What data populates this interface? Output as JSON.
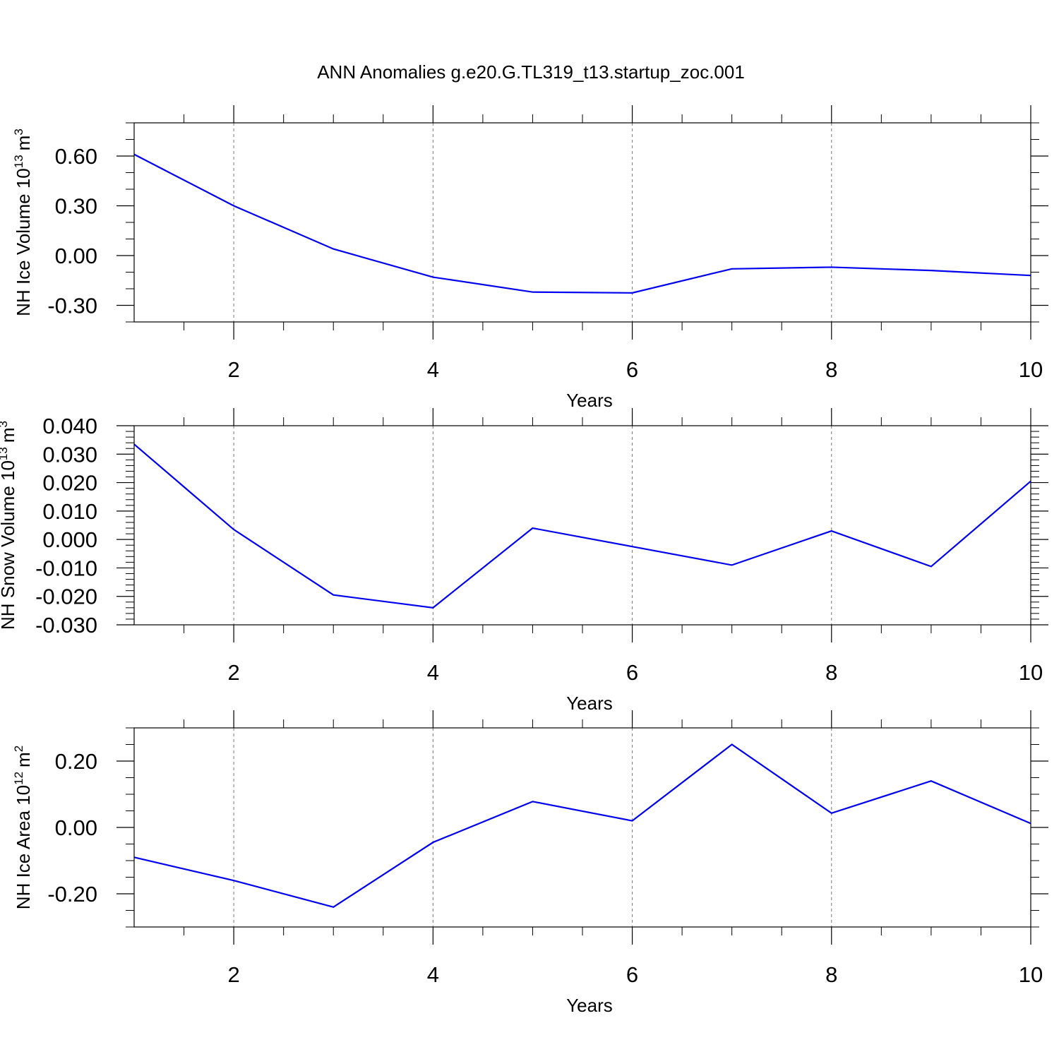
{
  "figure": {
    "title": "ANN Anomalies g.e20.G.TL319_t13.startup_zoc.001"
  },
  "chart_data": [
    {
      "type": "line",
      "xlabel": "Years",
      "ylabel": {
        "main": "NH Ice Volume 10",
        "exp": "13",
        "unit": "m",
        "unit_exp": "3"
      },
      "xlim": [
        1,
        10
      ],
      "ylim": [
        -0.4,
        0.8
      ],
      "xticks": [
        2,
        4,
        6,
        8,
        10
      ],
      "xticks_minor": [
        1.5,
        2.5,
        3,
        3.5,
        4.5,
        5,
        5.5,
        6.5,
        7,
        7.5,
        8.5,
        9,
        9.5
      ],
      "yticks": [
        -0.3,
        0.0,
        0.3,
        0.6
      ],
      "ytick_labels": [
        "-0.30",
        "0.00",
        "0.30",
        "0.60"
      ],
      "yticks_minor": [
        -0.4,
        -0.2,
        -0.1,
        0.1,
        0.2,
        0.4,
        0.5,
        0.7,
        0.8
      ],
      "grid": "vertical-dashed",
      "line_color": "#0000ee",
      "series": [
        {
          "x": [
            1,
            2,
            3,
            4,
            5,
            6,
            7,
            8,
            9,
            10
          ],
          "values": [
            0.61,
            0.3,
            0.04,
            -0.13,
            -0.22,
            -0.225,
            -0.08,
            -0.07,
            -0.09,
            -0.12
          ]
        }
      ]
    },
    {
      "type": "line",
      "xlabel": "Years",
      "ylabel": {
        "main": "NH Snow Volume 10",
        "exp": "13",
        "unit": "m",
        "unit_exp": "3"
      },
      "xlim": [
        1,
        10
      ],
      "ylim": [
        -0.03,
        0.04
      ],
      "xticks": [
        2,
        4,
        6,
        8,
        10
      ],
      "xticks_minor": [
        1.5,
        2.5,
        3,
        3.5,
        4.5,
        5,
        5.5,
        6.5,
        7,
        7.5,
        8.5,
        9,
        9.5
      ],
      "yticks": [
        -0.03,
        -0.02,
        -0.01,
        0.0,
        0.01,
        0.02,
        0.03,
        0.04
      ],
      "ytick_labels": [
        "-0.030",
        "-0.020",
        "-0.010",
        "0.000",
        "0.010",
        "0.020",
        "0.030",
        "0.040"
      ],
      "yticks_minor": [
        -0.028,
        -0.026,
        -0.024,
        -0.022,
        -0.018,
        -0.016,
        -0.014,
        -0.012,
        -0.008,
        -0.006,
        -0.004,
        -0.002,
        0.002,
        0.004,
        0.006,
        0.008,
        0.012,
        0.014,
        0.016,
        0.018,
        0.022,
        0.024,
        0.026,
        0.028,
        0.032,
        0.034,
        0.036,
        0.038
      ],
      "grid": "vertical-dashed",
      "line_color": "#0000ee",
      "series": [
        {
          "x": [
            1,
            2,
            3,
            4,
            5,
            6,
            7,
            8,
            9,
            10
          ],
          "values": [
            0.0335,
            0.0035,
            -0.0195,
            -0.024,
            0.004,
            -0.0025,
            -0.009,
            0.003,
            -0.0095,
            0.0205
          ]
        }
      ]
    },
    {
      "type": "line",
      "xlabel": "Years",
      "ylabel": {
        "main": "NH Ice Area 10",
        "exp": "12",
        "unit": "m",
        "unit_exp": "2"
      },
      "xlim": [
        1,
        10
      ],
      "ylim": [
        -0.3,
        0.3
      ],
      "xticks": [
        2,
        4,
        6,
        8,
        10
      ],
      "xticks_minor": [
        1.5,
        2.5,
        3,
        3.5,
        4.5,
        5,
        5.5,
        6.5,
        7,
        7.5,
        8.5,
        9,
        9.5
      ],
      "yticks": [
        -0.2,
        0.0,
        0.2
      ],
      "ytick_labels": [
        "-0.20",
        "0.00",
        "0.20"
      ],
      "yticks_minor": [
        -0.3,
        -0.25,
        -0.15,
        -0.1,
        -0.05,
        0.05,
        0.1,
        0.15,
        0.25,
        0.3
      ],
      "grid": "vertical-dashed",
      "line_color": "#0000ee",
      "series": [
        {
          "x": [
            1,
            2,
            3,
            4,
            5,
            6,
            7,
            8,
            9,
            10
          ],
          "values": [
            -0.09,
            -0.16,
            -0.24,
            -0.045,
            0.078,
            0.02,
            0.25,
            0.043,
            0.14,
            0.012
          ]
        }
      ]
    }
  ]
}
